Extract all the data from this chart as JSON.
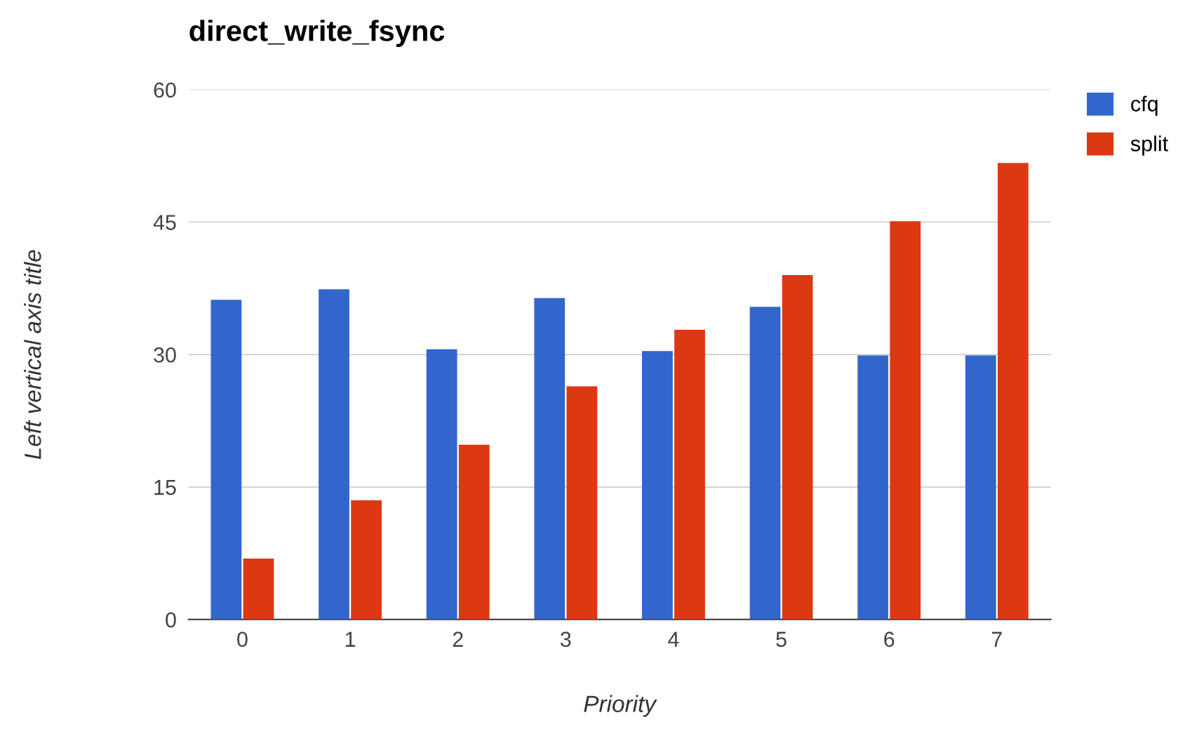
{
  "chart_data": {
    "type": "bar",
    "title": "direct_write_fsync",
    "xlabel": "Priority",
    "ylabel": "Left vertical axis title",
    "categories": [
      "0",
      "1",
      "2",
      "3",
      "4",
      "5",
      "6",
      "7"
    ],
    "series": [
      {
        "name": "cfq",
        "color": "#3366cc",
        "values": [
          36.2,
          37.4,
          30.6,
          36.4,
          30.4,
          35.4,
          29.9,
          29.9
        ]
      },
      {
        "name": "split",
        "color": "#dc3912",
        "values": [
          6.9,
          13.5,
          19.8,
          26.4,
          32.8,
          39.0,
          45.1,
          51.7
        ]
      }
    ],
    "ylim": [
      0,
      60
    ],
    "yticks": [
      0,
      15,
      30,
      45,
      60
    ],
    "grid": "y",
    "legend": "top right"
  }
}
